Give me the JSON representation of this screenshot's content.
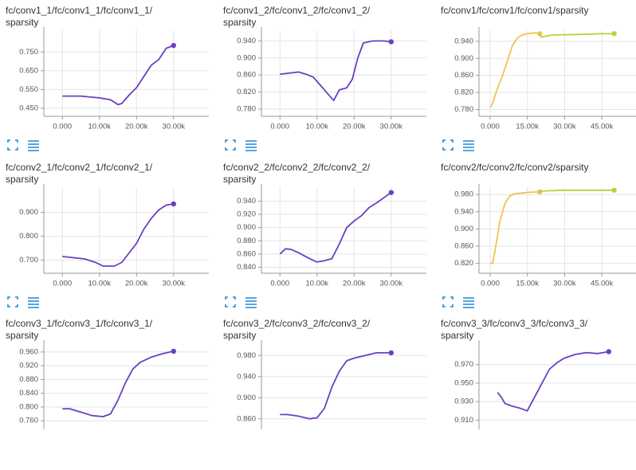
{
  "chart_data": [
    {
      "type": "line",
      "title": "fc/conv1_1/fc/conv1_1/fc/conv1_1/sparsity",
      "xlim": [
        -5000,
        39500
      ],
      "ylim": [
        0.407,
        0.866
      ],
      "xticks": [
        {
          "value": 0,
          "label": "0.000"
        },
        {
          "value": 10000,
          "label": "10.00k"
        },
        {
          "value": 20000,
          "label": "20.00k"
        },
        {
          "value": 30000,
          "label": "30.00k"
        }
      ],
      "yticks": [
        {
          "value": 0.45,
          "label": "0.450"
        },
        {
          "value": 0.55,
          "label": "0.550"
        },
        {
          "value": 0.65,
          "label": "0.650"
        },
        {
          "value": 0.75,
          "label": "0.750"
        }
      ],
      "series": [
        {
          "color": "#6a3fc4",
          "x": [
            0,
            5000,
            10000,
            13000,
            15000,
            16000,
            18000,
            20000,
            22000,
            24000,
            26000,
            28000,
            30000
          ],
          "values": [
            0.515,
            0.515,
            0.505,
            0.495,
            0.47,
            0.475,
            0.52,
            0.56,
            0.62,
            0.68,
            0.71,
            0.77,
            0.785
          ]
        }
      ]
    },
    {
      "type": "line",
      "title": "fc/conv1_2/fc/conv1_2/fc/conv1_2/sparsity",
      "xlim": [
        -5000,
        39500
      ],
      "ylim": [
        0.763,
        0.965
      ],
      "xticks": [
        {
          "value": 0,
          "label": "0.000"
        },
        {
          "value": 10000,
          "label": "10.00k"
        },
        {
          "value": 20000,
          "label": "20.00k"
        },
        {
          "value": 30000,
          "label": "30.00k"
        }
      ],
      "yticks": [
        {
          "value": 0.78,
          "label": "0.780"
        },
        {
          "value": 0.82,
          "label": "0.820"
        },
        {
          "value": 0.86,
          "label": "0.860"
        },
        {
          "value": 0.9,
          "label": "0.900"
        },
        {
          "value": 0.94,
          "label": "0.940"
        }
      ],
      "series": [
        {
          "color": "#6a3fc4",
          "x": [
            0,
            3000,
            5000,
            7000,
            9000,
            11000,
            13000,
            14500,
            16000,
            18000,
            19500,
            21000,
            22500,
            25000,
            28000,
            30000
          ],
          "values": [
            0.862,
            0.865,
            0.867,
            0.862,
            0.855,
            0.835,
            0.815,
            0.8,
            0.825,
            0.83,
            0.85,
            0.9,
            0.935,
            0.94,
            0.94,
            0.938
          ]
        }
      ]
    },
    {
      "type": "line",
      "title": "fc/conv1/fc/conv1/fc/conv1/sparsity",
      "xlim": [
        -4500,
        62000
      ],
      "ylim": [
        0.764,
        0.966
      ],
      "xticks": [
        {
          "value": 0,
          "label": "0.000"
        },
        {
          "value": 15000,
          "label": "15.00k"
        },
        {
          "value": 30000,
          "label": "30.00k"
        },
        {
          "value": 45000,
          "label": "45.00k"
        }
      ],
      "yticks": [
        {
          "value": 0.78,
          "label": "0.780"
        },
        {
          "value": 0.82,
          "label": "0.820"
        },
        {
          "value": 0.86,
          "label": "0.860"
        },
        {
          "value": 0.9,
          "label": "0.900"
        },
        {
          "value": 0.94,
          "label": "0.940"
        }
      ],
      "series": [
        {
          "color": "#f2c14e",
          "x": [
            0,
            1000,
            3000,
            5000,
            7000,
            9000,
            11000,
            13000,
            15000,
            18000,
            20000
          ],
          "values": [
            0.785,
            0.795,
            0.83,
            0.86,
            0.895,
            0.93,
            0.948,
            0.955,
            0.958,
            0.96,
            0.958
          ]
        },
        {
          "color": "#c5cc36",
          "x": [
            20000,
            20500,
            25000,
            35000,
            45000,
            50000
          ],
          "values": [
            0.958,
            0.95,
            0.955,
            0.956,
            0.958,
            0.958
          ]
        }
      ]
    },
    {
      "type": "line",
      "title": "fc/conv2_1/fc/conv2_1/fc/conv2_1/sparsity",
      "xlim": [
        -5000,
        39500
      ],
      "ylim": [
        0.645,
        1.005
      ],
      "xticks": [
        {
          "value": 0,
          "label": "0.000"
        },
        {
          "value": 10000,
          "label": "10.00k"
        },
        {
          "value": 20000,
          "label": "20.00k"
        },
        {
          "value": 30000,
          "label": "30.00k"
        }
      ],
      "yticks": [
        {
          "value": 0.7,
          "label": "0.700"
        },
        {
          "value": 0.8,
          "label": "0.800"
        },
        {
          "value": 0.9,
          "label": "0.900"
        }
      ],
      "series": [
        {
          "color": "#6a3fc4",
          "x": [
            0,
            3000,
            6000,
            9000,
            11000,
            14000,
            16000,
            18000,
            20000,
            22000,
            24000,
            26000,
            28000,
            30000
          ],
          "values": [
            0.715,
            0.71,
            0.705,
            0.69,
            0.675,
            0.675,
            0.69,
            0.73,
            0.77,
            0.83,
            0.875,
            0.91,
            0.93,
            0.935
          ]
        }
      ]
    },
    {
      "type": "line",
      "title": "fc/conv2_2/fc/conv2_2/fc/conv2_2/sparsity",
      "xlim": [
        -5000,
        39500
      ],
      "ylim": [
        0.831,
        0.961
      ],
      "xticks": [
        {
          "value": 0,
          "label": "0.000"
        },
        {
          "value": 10000,
          "label": "10.00k"
        },
        {
          "value": 20000,
          "label": "20.00k"
        },
        {
          "value": 30000,
          "label": "30.00k"
        }
      ],
      "yticks": [
        {
          "value": 0.84,
          "label": "0.840"
        },
        {
          "value": 0.86,
          "label": "0.860"
        },
        {
          "value": 0.88,
          "label": "0.880"
        },
        {
          "value": 0.9,
          "label": "0.900"
        },
        {
          "value": 0.92,
          "label": "0.920"
        },
        {
          "value": 0.94,
          "label": "0.940"
        }
      ],
      "series": [
        {
          "color": "#6a3fc4",
          "x": [
            0,
            1500,
            3000,
            5000,
            8000,
            10000,
            12000,
            14000,
            16000,
            18000,
            20000,
            22000,
            24000,
            26000,
            28000,
            30000
          ],
          "values": [
            0.86,
            0.868,
            0.867,
            0.862,
            0.853,
            0.848,
            0.85,
            0.853,
            0.875,
            0.9,
            0.91,
            0.918,
            0.93,
            0.937,
            0.945,
            0.953
          ]
        }
      ]
    },
    {
      "type": "line",
      "title": "fc/conv2/fc/conv2/fc/conv2/sparsity",
      "xlim": [
        -4500,
        62000
      ],
      "ylim": [
        0.797,
        0.997
      ],
      "xticks": [
        {
          "value": 0,
          "label": "0.000"
        },
        {
          "value": 15000,
          "label": "15.00k"
        },
        {
          "value": 30000,
          "label": "30.00k"
        },
        {
          "value": 45000,
          "label": "45.00k"
        }
      ],
      "yticks": [
        {
          "value": 0.82,
          "label": "0.820"
        },
        {
          "value": 0.86,
          "label": "0.860"
        },
        {
          "value": 0.9,
          "label": "0.900"
        },
        {
          "value": 0.94,
          "label": "0.940"
        },
        {
          "value": 0.98,
          "label": "0.980"
        }
      ],
      "series": [
        {
          "color": "#f2c14e",
          "x": [
            0,
            1000,
            2000,
            4000,
            6000,
            8000,
            10000,
            15000,
            20000
          ],
          "values": [
            0.82,
            0.82,
            0.85,
            0.92,
            0.96,
            0.977,
            0.982,
            0.985,
            0.986
          ]
        },
        {
          "color": "#c5cc36",
          "x": [
            20000,
            30000,
            40000,
            50000
          ],
          "values": [
            0.988,
            0.99,
            0.99,
            0.99
          ]
        }
      ]
    },
    {
      "type": "line",
      "title": "fc/conv3_1/fc/conv3_1/fc/conv3_1/sparsity",
      "xlim": [
        -5000,
        39500
      ],
      "ylim": [
        0.735,
        0.985
      ],
      "yticks": [
        {
          "value": 0.76,
          "label": "0.760"
        },
        {
          "value": 0.8,
          "label": "0.800"
        },
        {
          "value": 0.84,
          "label": "0.840"
        },
        {
          "value": 0.88,
          "label": "0.880"
        },
        {
          "value": 0.92,
          "label": "0.920"
        },
        {
          "value": 0.96,
          "label": "0.960"
        }
      ],
      "series": [
        {
          "color": "#6a3fc4",
          "x": [
            0,
            2000,
            5000,
            8000,
            11000,
            13000,
            15000,
            17000,
            19000,
            21000,
            24000,
            27000,
            30000
          ],
          "values": [
            0.795,
            0.795,
            0.785,
            0.775,
            0.772,
            0.78,
            0.82,
            0.87,
            0.91,
            0.93,
            0.945,
            0.955,
            0.962
          ]
        }
      ]
    },
    {
      "type": "line",
      "title": "fc/conv3_2/fc/conv3_2/fc/conv3_2/sparsity",
      "xlim": [
        -5000,
        39500
      ],
      "ylim": [
        0.84,
        1.003
      ],
      "yticks": [
        {
          "value": 0.86,
          "label": "0.860"
        },
        {
          "value": 0.9,
          "label": "0.900"
        },
        {
          "value": 0.94,
          "label": "0.940"
        },
        {
          "value": 0.98,
          "label": "0.980"
        }
      ],
      "series": [
        {
          "color": "#6a3fc4",
          "x": [
            0,
            2000,
            5000,
            8000,
            10000,
            12000,
            14000,
            16000,
            18000,
            20000,
            23000,
            26000,
            30000
          ],
          "values": [
            0.868,
            0.868,
            0.865,
            0.86,
            0.862,
            0.88,
            0.92,
            0.95,
            0.97,
            0.975,
            0.98,
            0.985,
            0.985
          ]
        }
      ]
    },
    {
      "type": "line",
      "title": "fc/conv3_3/fc/conv3_3/fc/conv3_3/sparsity",
      "xlim": [
        -5000,
        39500
      ],
      "ylim": [
        0.9,
        0.993
      ],
      "yticks": [
        {
          "value": 0.91,
          "label": "0.910"
        },
        {
          "value": 0.93,
          "label": "0.930"
        },
        {
          "value": 0.95,
          "label": "0.950"
        },
        {
          "value": 0.97,
          "label": "0.970"
        }
      ],
      "series": [
        {
          "color": "#6a3fc4",
          "x": [
            0,
            1000,
            2000,
            4000,
            6000,
            8000,
            10000,
            12000,
            14000,
            16000,
            18000,
            21000,
            24000,
            27000,
            30000
          ],
          "values": [
            0.94,
            0.935,
            0.928,
            0.925,
            0.923,
            0.92,
            0.935,
            0.95,
            0.965,
            0.972,
            0.977,
            0.981,
            0.983,
            0.982,
            0.984
          ]
        }
      ]
    }
  ]
}
